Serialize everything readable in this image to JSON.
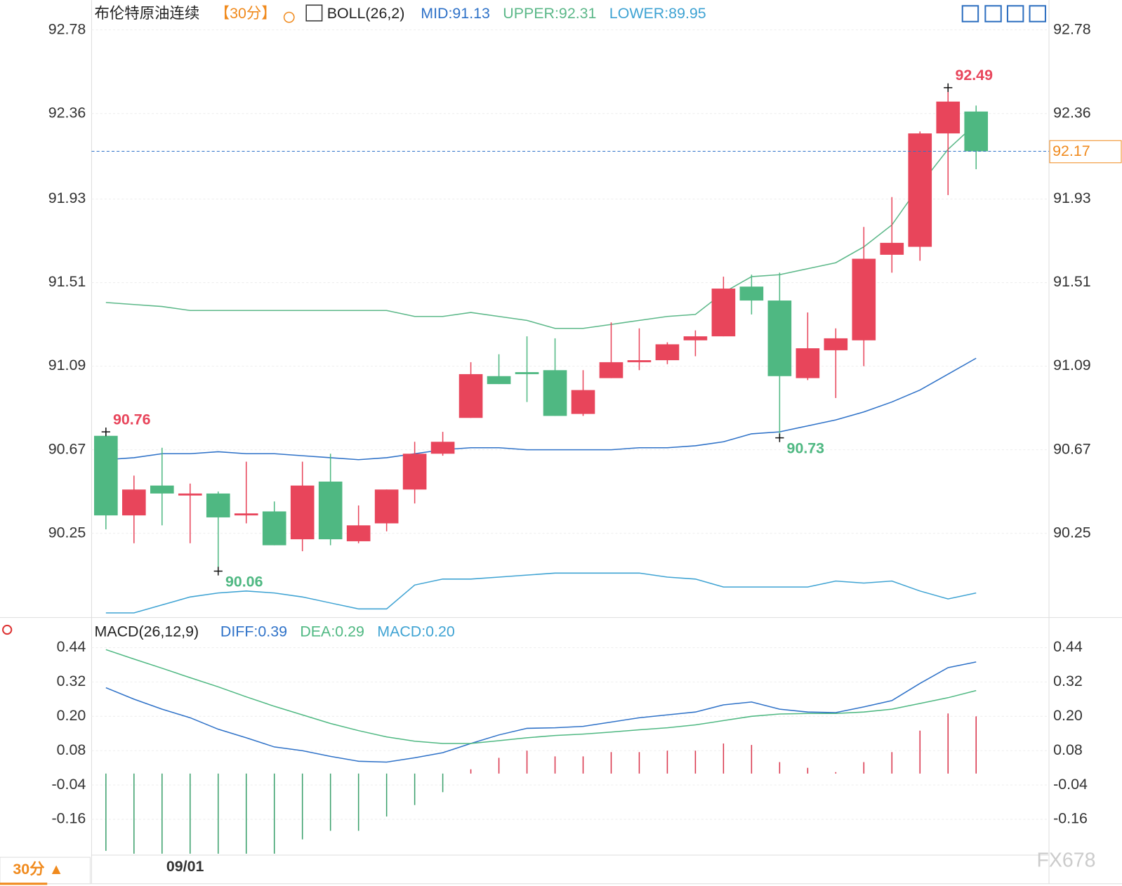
{
  "chart_data": [
    {
      "type": "candlestick",
      "title": "布伦特原油连续",
      "period": "【30分】",
      "indicator": "BOLL(26,2)",
      "categories": [
        null,
        null,
        null,
        "09/01",
        null,
        null,
        null,
        null,
        null,
        null,
        null,
        null,
        null,
        null,
        null,
        null,
        null,
        null,
        null,
        null,
        null,
        null,
        null,
        null,
        null,
        null,
        null,
        null,
        null,
        null,
        null,
        null
      ],
      "open": [
        90.74,
        90.34,
        90.49,
        90.44,
        90.45,
        90.34,
        90.36,
        90.22,
        90.51,
        90.21,
        90.3,
        90.47,
        90.65,
        90.83,
        91.04,
        91.06,
        91.07,
        90.85,
        91.03,
        91.11,
        91.12,
        91.22,
        91.24,
        91.49,
        91.42,
        91.03,
        91.17,
        91.22,
        91.65,
        91.69,
        92.26,
        92.37
      ],
      "high": [
        90.76,
        90.54,
        90.68,
        90.5,
        90.46,
        90.61,
        90.41,
        90.61,
        90.65,
        90.39,
        90.47,
        90.71,
        90.76,
        91.11,
        91.15,
        91.24,
        91.23,
        91.07,
        91.31,
        91.28,
        91.21,
        91.27,
        91.54,
        91.55,
        91.56,
        91.36,
        91.28,
        91.79,
        91.94,
        92.27,
        92.49,
        92.4
      ],
      "low": [
        90.27,
        90.2,
        90.29,
        90.2,
        90.06,
        90.3,
        90.19,
        90.16,
        90.19,
        90.2,
        90.26,
        90.4,
        90.64,
        90.83,
        91.0,
        90.91,
        90.84,
        90.84,
        91.03,
        91.07,
        91.1,
        91.14,
        91.24,
        91.35,
        90.73,
        91.02,
        90.93,
        91.09,
        91.56,
        91.62,
        91.95,
        92.08
      ],
      "close": [
        90.34,
        90.47,
        90.45,
        90.45,
        90.33,
        90.35,
        90.19,
        90.49,
        90.22,
        90.29,
        90.47,
        90.65,
        90.71,
        91.05,
        91.0,
        91.05,
        90.84,
        90.97,
        91.11,
        91.12,
        91.2,
        91.24,
        91.48,
        91.42,
        91.04,
        91.18,
        91.23,
        91.63,
        91.71,
        92.26,
        92.42,
        92.17
      ],
      "up_color": "#e8455b",
      "down_color": "#4fb882",
      "overlays": [
        {
          "name": "MID:91.13",
          "color": "#2f72c8",
          "values": [
            90.62,
            90.63,
            90.65,
            90.65,
            90.66,
            90.65,
            90.65,
            90.64,
            90.63,
            90.62,
            90.63,
            90.65,
            90.67,
            90.68,
            90.68,
            90.67,
            90.67,
            90.67,
            90.67,
            90.68,
            90.68,
            90.69,
            90.71,
            90.75,
            90.76,
            90.79,
            90.82,
            90.86,
            90.91,
            90.97,
            91.05,
            91.13
          ]
        },
        {
          "name": "UPPER:92.31",
          "color": "#5cb889",
          "values": [
            91.41,
            91.4,
            91.39,
            91.37,
            91.37,
            91.37,
            91.37,
            91.37,
            91.37,
            91.37,
            91.37,
            91.34,
            91.34,
            91.36,
            91.34,
            91.32,
            91.28,
            91.28,
            91.3,
            91.32,
            91.34,
            91.35,
            91.46,
            91.54,
            91.55,
            91.58,
            91.61,
            91.69,
            91.8,
            92.0,
            92.18,
            92.31
          ]
        },
        {
          "name": "LOWER:89.95",
          "color": "#3fa3d3",
          "values": [
            89.85,
            89.85,
            89.89,
            89.93,
            89.95,
            89.96,
            89.95,
            89.93,
            89.9,
            89.87,
            89.87,
            89.99,
            90.02,
            90.02,
            90.03,
            90.04,
            90.05,
            90.05,
            90.05,
            90.05,
            90.03,
            90.02,
            89.98,
            89.98,
            89.98,
            89.98,
            90.01,
            90.0,
            90.01,
            89.96,
            89.92,
            89.95
          ]
        }
      ],
      "annotations": [
        {
          "label": "92.49",
          "value": 92.49,
          "x": 30,
          "color": "#e8455b"
        },
        {
          "label": "90.76",
          "value": 90.76,
          "x": 0,
          "color": "#e8455b"
        },
        {
          "label": "90.06",
          "value": 90.06,
          "x": 4,
          "color": "#4fb882"
        },
        {
          "label": "90.73",
          "value": 90.73,
          "x": 24,
          "color": "#4fb882"
        }
      ],
      "last_price": 92.17,
      "last_color": "#f08a1d",
      "ylim": [
        89.83,
        92.93
      ],
      "yticks": [
        92.78,
        92.36,
        91.93,
        91.51,
        91.09,
        90.67,
        90.25
      ],
      "grid": true
    },
    {
      "type": "macd",
      "title": "MACD(26,12,9)",
      "series": [
        {
          "name": "DIFF:0.39",
          "color": "#2f72c8",
          "values": [
            0.3,
            0.26,
            0.225,
            0.195,
            0.155,
            0.125,
            0.093,
            0.08,
            0.06,
            0.043,
            0.04,
            0.055,
            0.073,
            0.105,
            0.135,
            0.158,
            0.16,
            0.165,
            0.18,
            0.195,
            0.205,
            0.215,
            0.24,
            0.25,
            0.225,
            0.215,
            0.213,
            0.233,
            0.255,
            0.315,
            0.37,
            0.39
          ]
        },
        {
          "name": "DEA:0.29",
          "color": "#4fb882",
          "values": [
            0.433,
            0.4,
            0.368,
            0.335,
            0.303,
            0.268,
            0.235,
            0.205,
            0.175,
            0.15,
            0.128,
            0.113,
            0.105,
            0.105,
            0.115,
            0.125,
            0.133,
            0.138,
            0.145,
            0.153,
            0.16,
            0.17,
            0.185,
            0.2,
            0.208,
            0.21,
            0.21,
            0.215,
            0.225,
            0.245,
            0.265,
            0.29
          ]
        }
      ],
      "histogram": {
        "name": "MACD:0.20",
        "legend_color": "#3fa3d3",
        "up_color": "#d9334a",
        "down_color": "#3aa06b",
        "values": [
          -0.27,
          -0.28,
          -0.28,
          -0.28,
          -0.28,
          -0.28,
          -0.28,
          -0.23,
          -0.2,
          -0.2,
          -0.15,
          -0.11,
          -0.065,
          0.015,
          0.055,
          0.08,
          0.06,
          0.06,
          0.075,
          0.075,
          0.08,
          0.08,
          0.105,
          0.1,
          0.04,
          0.02,
          0.005,
          0.04,
          0.075,
          0.15,
          0.21,
          0.2
        ]
      },
      "ylim": [
        -0.285,
        0.54
      ],
      "yticks": [
        0.44,
        0.32,
        {
          "value": 0.2,
          "label": "0.20"
        },
        0.08,
        -0.04,
        -0.16
      ]
    }
  ],
  "footer": {
    "period": "30分 ▲",
    "watermark": "FX678"
  }
}
